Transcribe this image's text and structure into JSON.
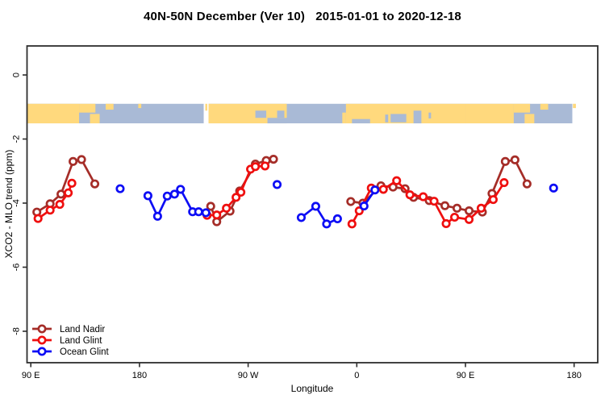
{
  "title": "40N-50N December (Ver 10)   2015-01-01 to 2020-12-18",
  "chart_data": {
    "type": "scatter",
    "title": "40N-50N December (Ver 10)   2015-01-01 to 2020-12-18",
    "xlabel": "Longitude",
    "ylabel": "XCO2 - MLO trend (ppm)",
    "axis_note": "x axis spans 450 deg of longitude: 90E eastward through 180, 90W, 0, 90E to 180",
    "xlim": [
      86.9,
      559.6
    ],
    "ylim": [
      -8.98,
      0.91
    ],
    "grid": false,
    "x_ticks": [
      {
        "lon": 90,
        "label": "90 E"
      },
      {
        "lon": 180,
        "label": "180"
      },
      {
        "lon": 270,
        "label": "90 W"
      },
      {
        "lon": 360,
        "label": "0"
      },
      {
        "lon": 450,
        "label": "90 E"
      },
      {
        "lon": 540,
        "label": "180"
      }
    ],
    "y_ticks": [
      {
        "v": 0,
        "label": "0"
      },
      {
        "v": -2,
        "label": "-2"
      },
      {
        "v": -4,
        "label": "-4"
      },
      {
        "v": -6,
        "label": "-6"
      },
      {
        "v": -8,
        "label": "-8"
      }
    ],
    "map_band": {
      "description": "world coastline strip for 40N-50N drawn across the plot",
      "top_value": -0.9,
      "bottom_value": -1.51,
      "start": 87,
      "end": 538.5,
      "gaps": [
        [
          233.2,
          237.2
        ]
      ],
      "land_color": "#ffd97d",
      "ocean_color": "#a9bad6",
      "land_patches": [
        {
          "from": 87,
          "to": 130,
          "t": 0,
          "b": 1
        },
        {
          "from": 130,
          "to": 143.5,
          "t": 0,
          "b": 0.45
        },
        {
          "from": 139,
          "to": 147,
          "t": 0.52,
          "b": 1
        },
        {
          "from": 152,
          "to": 158.5,
          "t": 0,
          "b": 0.3
        },
        {
          "from": 179,
          "to": 181.5,
          "t": 0,
          "b": 0.22
        },
        {
          "from": 234.5,
          "to": 236.2,
          "t": 0,
          "b": 0.35
        },
        {
          "from": 237.2,
          "to": 302,
          "t": 0,
          "b": 1
        },
        {
          "from": 348,
          "to": 351,
          "t": 0.45,
          "b": 1
        },
        {
          "from": 351,
          "to": 450,
          "t": 0,
          "b": 1
        },
        {
          "from": 450,
          "to": 490,
          "t": 0,
          "b": 1
        },
        {
          "from": 490,
          "to": 503.5,
          "t": 0,
          "b": 0.45
        },
        {
          "from": 499,
          "to": 507,
          "t": 0.52,
          "b": 1
        },
        {
          "from": 512,
          "to": 518.5,
          "t": 0,
          "b": 0.3
        },
        {
          "from": 539,
          "to": 541.5,
          "t": 0,
          "b": 0.22
        }
      ],
      "ocean_patches": [
        {
          "from": 276,
          "to": 285,
          "t": 0.35,
          "b": 0.72
        },
        {
          "from": 286,
          "to": 302,
          "t": 0.72,
          "b": 1
        },
        {
          "from": 294,
          "to": 300,
          "t": 0.35,
          "b": 0.72
        },
        {
          "from": 356,
          "to": 371,
          "t": 0.78,
          "b": 1
        },
        {
          "from": 383.5,
          "to": 386,
          "t": 0.55,
          "b": 0.95
        },
        {
          "from": 388,
          "to": 401,
          "t": 0.52,
          "b": 0.95
        },
        {
          "from": 407,
          "to": 413.5,
          "t": 0.35,
          "b": 1
        },
        {
          "from": 419.5,
          "to": 421.5,
          "t": 0.45,
          "b": 0.75
        }
      ]
    },
    "series": [
      {
        "name": "Land Nadir",
        "color": "#a52d28",
        "segments": [
          [
            [
              95,
              -4.28
            ],
            [
              106,
              -4.02
            ],
            [
              115,
              -3.72
            ],
            [
              125,
              -2.7
            ],
            [
              132,
              -2.64
            ],
            [
              143,
              -3.4
            ]
          ],
          [
            [
              239,
              -4.1
            ],
            [
              244,
              -4.58
            ],
            [
              255,
              -4.25
            ],
            [
              263,
              -3.62
            ],
            [
              276,
              -2.78
            ],
            [
              285,
              -2.67
            ],
            [
              291,
              -2.63
            ]
          ],
          [
            [
              355,
              -3.95
            ],
            [
              365,
              -4.0
            ],
            [
              380,
              -3.46
            ],
            [
              390,
              -3.5
            ],
            [
              400,
              -3.55
            ],
            [
              407,
              -3.82
            ],
            [
              420,
              -3.92
            ],
            [
              433,
              -4.08
            ],
            [
              443,
              -4.16
            ],
            [
              453,
              -4.24
            ],
            [
              464,
              -4.28
            ],
            [
              472,
              -3.7
            ],
            [
              483,
              -2.7
            ],
            [
              491,
              -2.65
            ],
            [
              501,
              -3.4
            ]
          ]
        ]
      },
      {
        "name": "Land Glint",
        "color": "#ef0f0f",
        "segments": [
          [
            [
              96,
              -4.48
            ],
            [
              106,
              -4.22
            ],
            [
              114,
              -4.04
            ],
            [
              121,
              -3.68
            ],
            [
              124,
              -3.38
            ]
          ],
          [
            [
              236,
              -4.38
            ],
            [
              244,
              -4.37
            ],
            [
              252,
              -4.16
            ],
            [
              260,
              -3.82
            ],
            [
              264,
              -3.66
            ],
            [
              272,
              -2.94
            ],
            [
              276,
              -2.86
            ],
            [
              284,
              -2.84
            ]
          ],
          [
            [
              356,
              -4.65
            ],
            [
              362,
              -4.24
            ],
            [
              372,
              -3.53
            ],
            [
              382,
              -3.57
            ],
            [
              393,
              -3.3
            ],
            [
              404,
              -3.74
            ],
            [
              415,
              -3.8
            ],
            [
              424,
              -3.94
            ],
            [
              434,
              -4.64
            ],
            [
              441,
              -4.44
            ],
            [
              453,
              -4.51
            ],
            [
              463,
              -4.16
            ],
            [
              473,
              -3.89
            ],
            [
              482,
              -3.36
            ]
          ]
        ]
      },
      {
        "name": "Ocean Glint",
        "color": "#0d0df5",
        "segments": [
          [
            [
              164,
              -3.55
            ]
          ],
          [
            [
              187,
              -3.77
            ],
            [
              195,
              -4.41
            ],
            [
              203,
              -3.78
            ],
            [
              209,
              -3.72
            ],
            [
              214,
              -3.57
            ],
            [
              224,
              -4.27
            ],
            [
              229,
              -4.27
            ],
            [
              235,
              -4.3
            ]
          ],
          [
            [
              294,
              -3.42
            ]
          ],
          [
            [
              314,
              -4.45
            ],
            [
              326,
              -4.1
            ],
            [
              335,
              -4.65
            ],
            [
              344,
              -4.49
            ]
          ],
          [
            [
              366,
              -4.09
            ],
            [
              375,
              -3.59
            ]
          ],
          [
            [
              523,
              -3.53
            ]
          ]
        ]
      }
    ],
    "legend": {
      "position": "bottom-left",
      "entries": [
        "Land Nadir",
        "Land Glint",
        "Ocean Glint"
      ]
    }
  }
}
